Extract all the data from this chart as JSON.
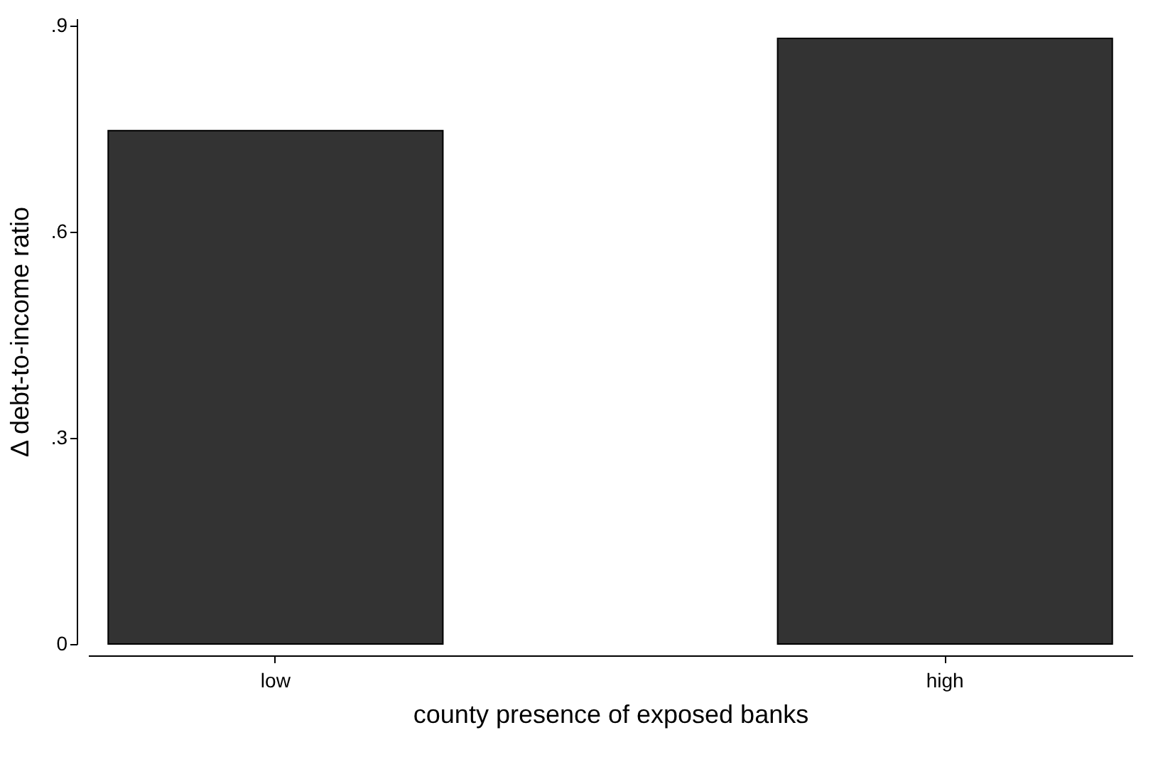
{
  "chart_data": {
    "type": "bar",
    "xlabel": "county presence of exposed banks",
    "ylabel": "Δ debt-to-income ratio",
    "categories": [
      "low",
      "high"
    ],
    "values": [
      0.747,
      0.881
    ],
    "color": "#333333",
    "ylim": [
      0,
      0.91
    ],
    "yticks": [
      0,
      {
        "value": 0.3,
        "label": ".3"
      },
      {
        "value": 0.6,
        "label": ".6"
      },
      {
        "value": 0.9,
        "label": ".9"
      }
    ],
    "grid": false
  }
}
